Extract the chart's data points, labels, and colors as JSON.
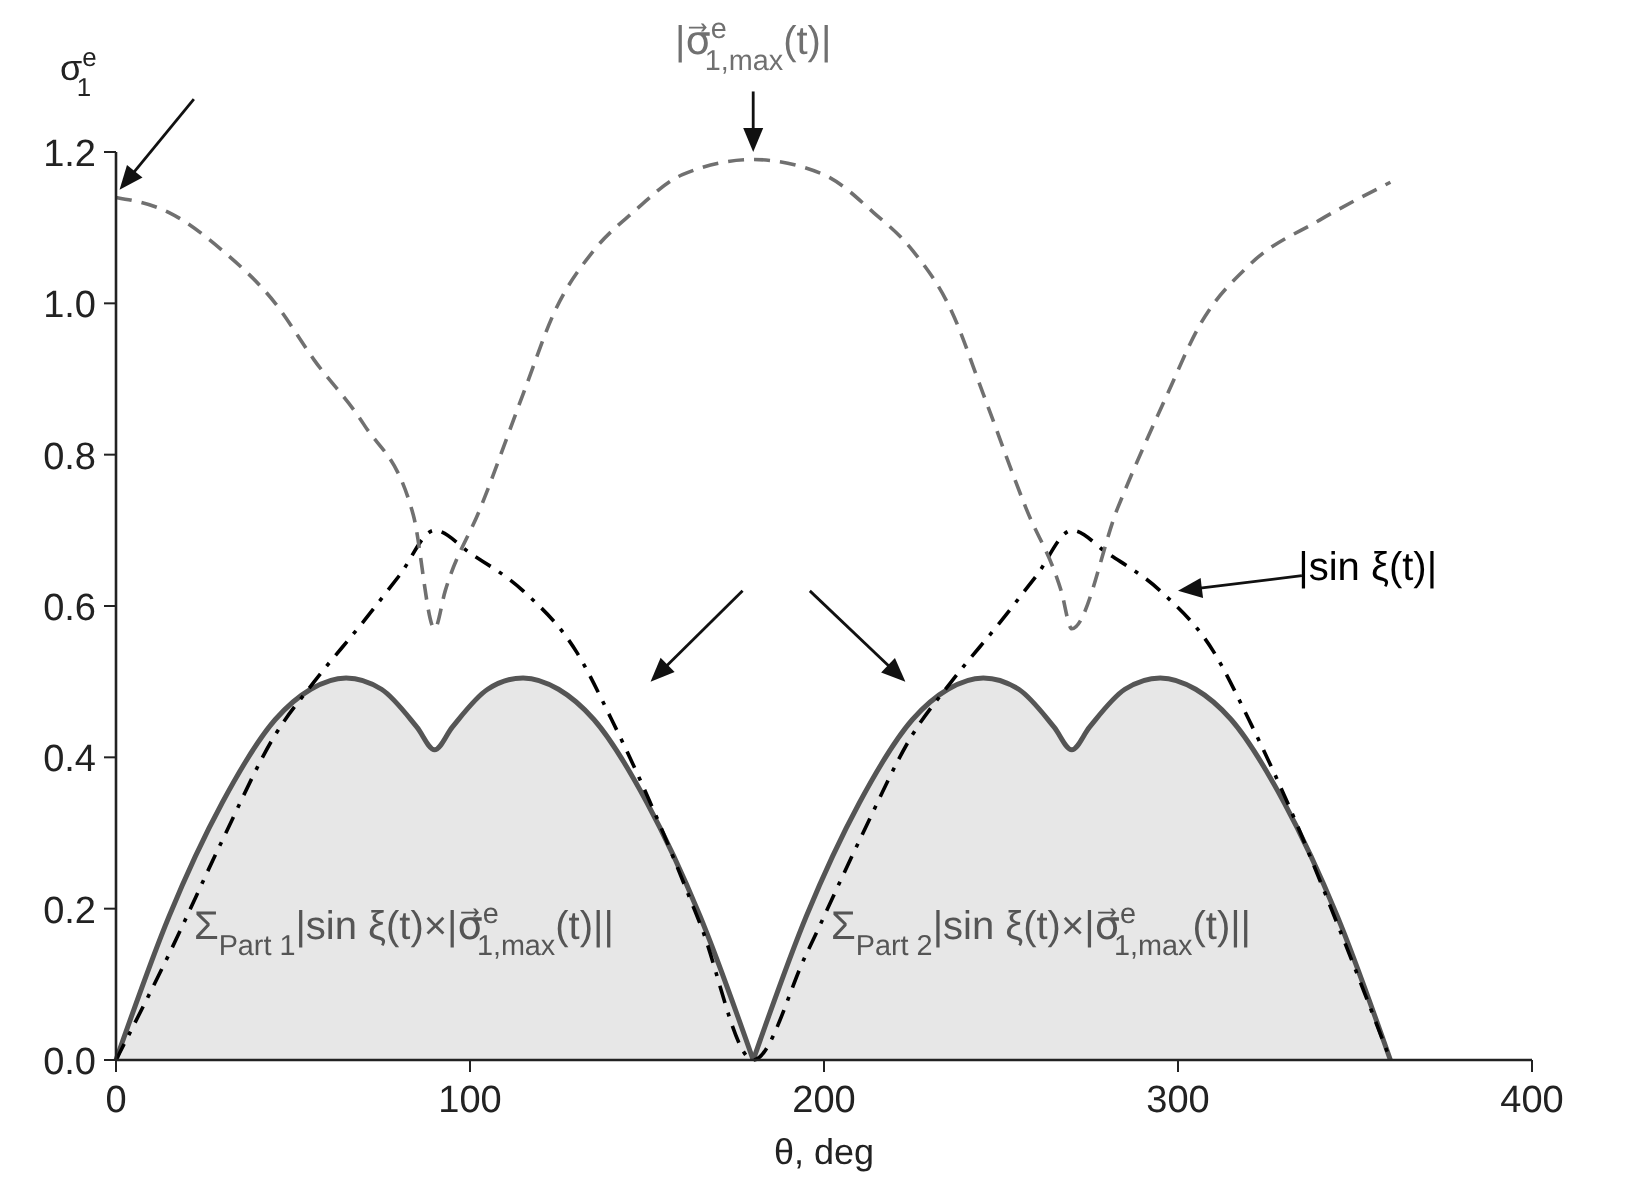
{
  "chart_data": {
    "type": "line",
    "xlabel": "θ, deg",
    "ylabel": "σ$^{e}$$_{1}$",
    "xlim": [
      0,
      400
    ],
    "xticks": [
      0,
      100,
      200,
      300,
      400
    ],
    "ylim": [
      0,
      1.2
    ],
    "yticks": [
      {
        "value": 0,
        "label": "0.0"
      },
      {
        "value": 0.2,
        "label": "0.2"
      },
      {
        "value": 0.4,
        "label": "0.4"
      },
      {
        "value": 0.6,
        "label": "0.6"
      },
      {
        "value": 0.8,
        "label": "0.8"
      },
      {
        "value": 1,
        "label": "1.0"
      },
      {
        "value": 1.2,
        "label": "1.2"
      }
    ],
    "grid": false,
    "legend": false,
    "marker": "none",
    "series": [
      {
        "type": "area",
        "name": "Σ$_{Part 1}$|sin ξ(t)×|σ⃗$^{e}$$_{1,max}$(t)||",
        "color": "#555555",
        "line_style": "solid",
        "x": [
          0,
          15,
          30,
          45,
          55,
          65,
          75,
          85,
          90,
          95,
          105,
          115,
          125,
          135,
          150,
          165,
          180
        ],
        "values": [
          0,
          0.19,
          0.34,
          0.45,
          0.49,
          0.505,
          0.49,
          0.44,
          0.41,
          0.44,
          0.49,
          0.505,
          0.49,
          0.45,
          0.34,
          0.19,
          0
        ]
      },
      {
        "type": "area",
        "name": "Σ$_{Part 2}$|sin ξ(t)×|σ⃗$^{e}$$_{1,max}$(t)||",
        "color": "#555555",
        "line_style": "solid",
        "x": [
          180,
          195,
          210,
          225,
          235,
          245,
          255,
          265,
          270,
          275,
          285,
          295,
          305,
          315,
          330,
          345,
          360
        ],
        "values": [
          0,
          0.19,
          0.34,
          0.45,
          0.49,
          0.505,
          0.49,
          0.44,
          0.41,
          0.44,
          0.49,
          0.505,
          0.49,
          0.45,
          0.34,
          0.19,
          0
        ]
      },
      {
        "name": "|sin ξ(t)|",
        "color": "#000000",
        "line_style": "dashdot",
        "x": [
          0,
          15,
          30,
          45,
          56,
          70,
          80,
          90,
          100,
          115,
          130,
          140,
          150,
          165,
          180,
          195,
          210,
          225,
          236,
          250,
          260,
          270,
          280,
          295,
          310,
          320,
          330,
          345,
          360
        ],
        "values": [
          0,
          0.14,
          0.29,
          0.43,
          0.5,
          0.58,
          0.64,
          0.7,
          0.67,
          0.62,
          0.54,
          0.45,
          0.35,
          0.18,
          0,
          0.14,
          0.29,
          0.43,
          0.5,
          0.58,
          0.64,
          0.7,
          0.67,
          0.62,
          0.54,
          0.45,
          0.35,
          0.18,
          0
        ]
      },
      {
        "name": "|σ⃗$^{e}$$_{1,max}$(t)|",
        "color": "#707070",
        "line_style": "dashed",
        "x": [
          0,
          15,
          30,
          45,
          56,
          70,
          84,
          90,
          93,
          103,
          115,
          124,
          135,
          146,
          160,
          180,
          200,
          214,
          225,
          236,
          245,
          257,
          267,
          270,
          283,
          297,
          306,
          320,
          340,
          360
        ],
        "values": [
          1.14,
          1.12,
          1.07,
          1.0,
          0.925,
          0.84,
          0.72,
          0.57,
          0.62,
          0.73,
          0.88,
          0.99,
          1.07,
          1.12,
          1.17,
          1.19,
          1.17,
          1.12,
          1.07,
          0.99,
          0.88,
          0.73,
          0.62,
          0.57,
          0.73,
          0.88,
          0.97,
          1.05,
          1.11,
          1.16
        ]
      }
    ]
  }
}
